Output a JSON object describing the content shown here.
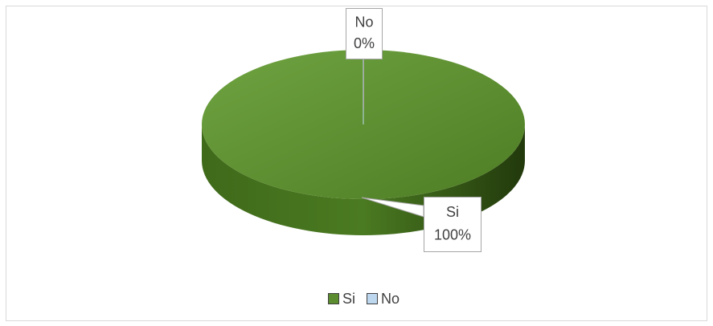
{
  "chart_data": {
    "type": "pie",
    "categories": [
      "Si",
      "No"
    ],
    "values": [
      100,
      0
    ],
    "value_labels": [
      "100%",
      "0%"
    ],
    "colors": [
      "#5b8c2f",
      "#bdd7ee"
    ],
    "legend": "bottom"
  }
}
